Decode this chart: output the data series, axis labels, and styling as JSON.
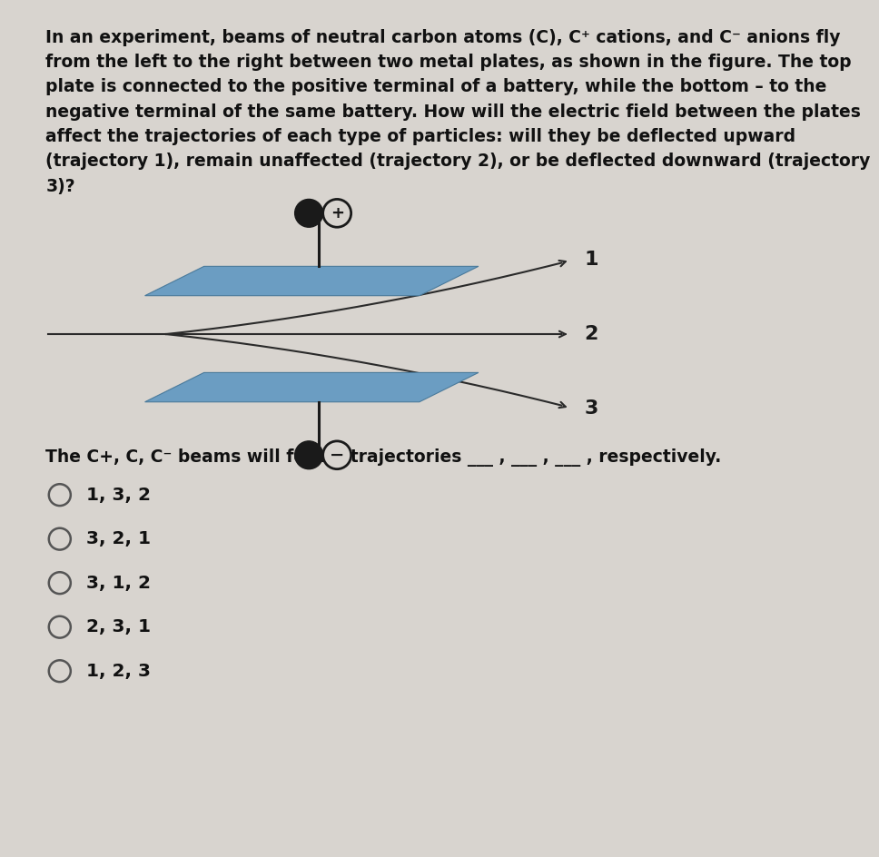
{
  "bg_color": "#d8d4cf",
  "plate_color": "#6b9dc2",
  "plate_edge_color": "#4a7a9b",
  "wire_color": "#1a1a1a",
  "trajectory_color": "#2a2a2a",
  "label_color": "#1a1a1a",
  "font_size_title": 13.5,
  "font_size_options": 14.5,
  "font_size_labels": 16,
  "title_lines": [
    "In an experiment, beams of neutral carbon atoms (C), C⁺ cations, and C⁻ anions fly",
    "from the left to the right between two metal plates, as shown in the figure. The top",
    "plate is connected to the positive terminal of a battery, while the bottom – to the",
    "negative terminal of the same battery. How will the electric field between the plates",
    "affect the trajectories of each type of particles: will they be deflected upward",
    "(trajectory 1), remain unaffected (trajectory 2), or be deflected downward (trajectory",
    "3)?"
  ],
  "options": [
    "1, 3, 2",
    "3, 2, 1",
    "3, 1, 2",
    "2, 3, 1",
    "1, 2, 3"
  ]
}
